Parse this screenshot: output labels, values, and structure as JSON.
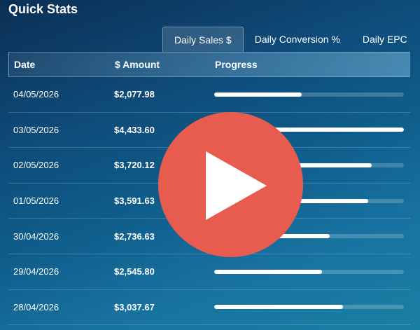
{
  "title": "Quick Stats",
  "tabs": [
    {
      "label": "Daily Sales $",
      "active": true
    },
    {
      "label": "Daily Conversion %",
      "active": false
    },
    {
      "label": "Daily EPC",
      "active": false
    }
  ],
  "table": {
    "headers": {
      "date": "Date",
      "amount": "$ Amount",
      "progress": "Progress"
    },
    "rows": [
      {
        "date": "04/05/2026",
        "amount": "$2,077.98",
        "progress": 0.46
      },
      {
        "date": "03/05/2026",
        "amount": "$4,433.60",
        "progress": 1.0
      },
      {
        "date": "02/05/2026",
        "amount": "$3,720.12",
        "progress": 0.83
      },
      {
        "date": "01/05/2026",
        "amount": "$3,591.63",
        "progress": 0.81
      },
      {
        "date": "30/04/2026",
        "amount": "$2,736.63",
        "progress": 0.61
      },
      {
        "date": "29/04/2026",
        "amount": "$2,545.80",
        "progress": 0.57
      },
      {
        "date": "28/04/2026",
        "amount": "$3,037.67",
        "progress": 0.68
      }
    ]
  },
  "colors": {
    "play_button": "#e85c4f",
    "bar_fill": "#ffffff"
  }
}
